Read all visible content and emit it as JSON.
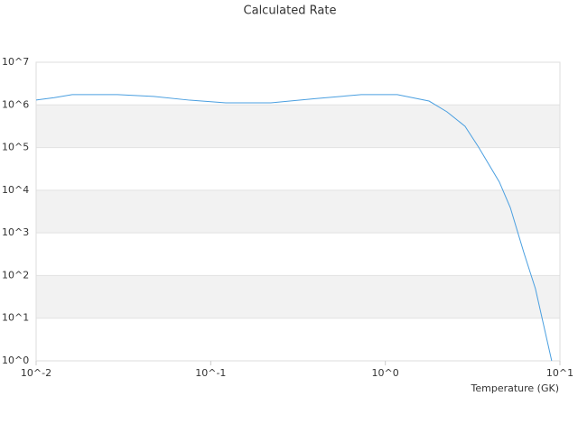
{
  "chart_data": {
    "type": "line",
    "title": "Calculated Rate",
    "x_label": "Temperature (GK)",
    "x": [
      0.01,
      0.0127,
      0.0161,
      0.0292,
      0.047,
      0.0759,
      0.122,
      0.221,
      0.401,
      0.728,
      1.17,
      1.78,
      2.25,
      2.86,
      3.42,
      4.5,
      5.2,
      6.21,
      7.24,
      8.97
    ],
    "series": [
      {
        "name": "Rate",
        "color": "#4a9fe0",
        "values": [
          1300000,
          1480000,
          1740000,
          1740000,
          1580000,
          1290000,
          1120000,
          1120000,
          1410000,
          1740000,
          1740000,
          1230000,
          692000,
          316000,
          102000,
          15500,
          3890,
          347,
          49,
          1
        ]
      }
    ],
    "xlim": [
      0.01,
      10
    ],
    "ylim": [
      1,
      10000000
    ],
    "x_log": true,
    "y_log": true,
    "xticks": [
      {
        "value": 0.01,
        "label": "10^-2"
      },
      {
        "value": 0.1,
        "label": "10^-1"
      },
      {
        "value": 1,
        "label": "10^0"
      },
      {
        "value": 10,
        "label": "10^1"
      }
    ],
    "yticks": [
      {
        "value": 1,
        "label": "10^0"
      },
      {
        "value": 10,
        "label": "10^1"
      },
      {
        "value": 100,
        "label": "10^2"
      },
      {
        "value": 1000,
        "label": "10^3"
      },
      {
        "value": 10000,
        "label": "10^4"
      },
      {
        "value": 100000,
        "label": "10^5"
      },
      {
        "value": 1000000,
        "label": "10^6"
      },
      {
        "value": 10000000,
        "label": "10^7"
      }
    ],
    "grid": "bands"
  }
}
